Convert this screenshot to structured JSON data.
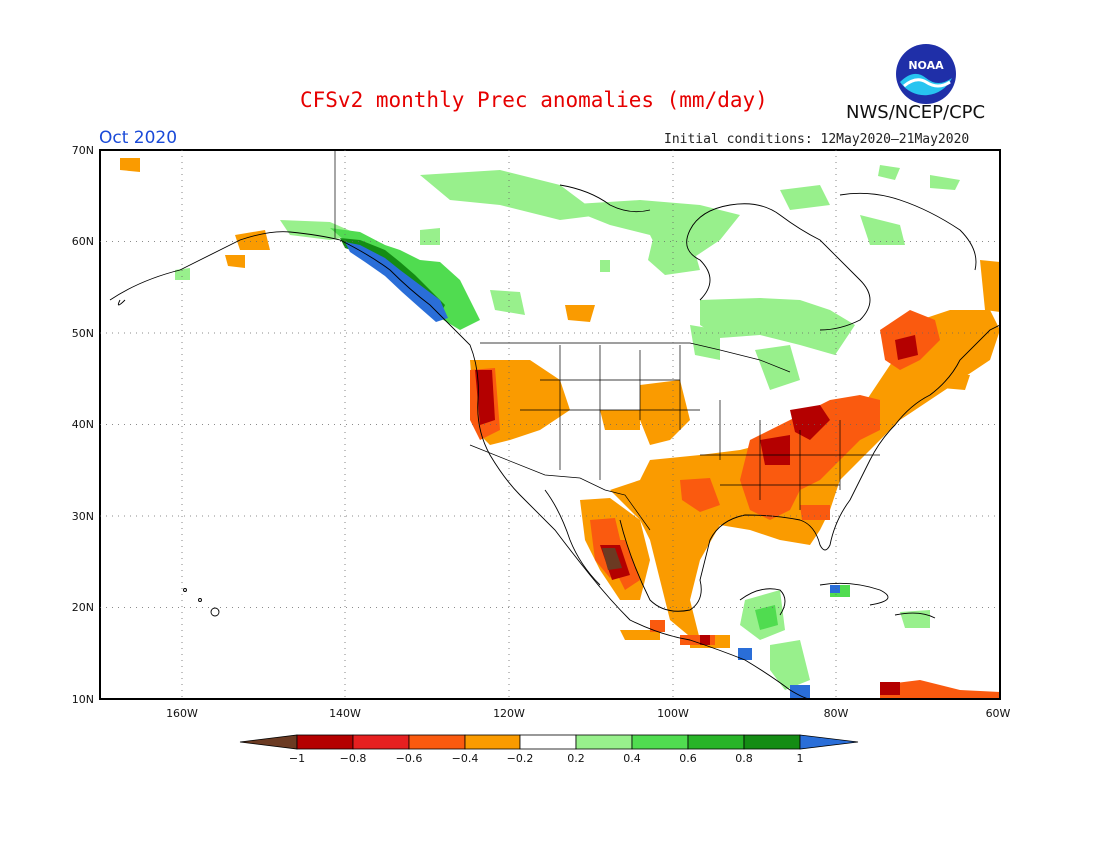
{
  "title": "CFSv2 monthly Prec anomalies (mm/day)",
  "agency": "NWS/NCEP/CPC",
  "logo_text": "NOAA",
  "valid_month": "Oct 2020",
  "initial_conditions": "Initial conditions: 12May2020—21May2020",
  "map": {
    "lon_range": [
      -170,
      -60
    ],
    "lat_range": [
      10,
      70
    ],
    "lat_ticks": [
      "70N",
      "60N",
      "50N",
      "40N",
      "30N",
      "20N",
      "10N"
    ],
    "lon_ticks": [
      "160W",
      "140W",
      "120W",
      "100W",
      "80W",
      "60W"
    ],
    "gridlines": "dotted"
  },
  "colorbar": {
    "labels": [
      "−1",
      "−0.8",
      "−0.6",
      "−0.4",
      "−0.2",
      "0.2",
      "0.4",
      "0.6",
      "0.8",
      "1"
    ],
    "colors": [
      "#6b3a22",
      "#b40000",
      "#e62020",
      "#fa5a0f",
      "#fa9b00",
      "#ffffff",
      "#98f08c",
      "#50dc50",
      "#28b428",
      "#148c14",
      "#2a6ed8"
    ]
  }
}
